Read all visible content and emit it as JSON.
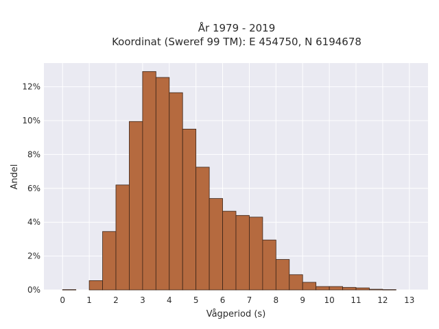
{
  "chart_data": {
    "type": "bar",
    "title": "År 1979 - 2019",
    "subtitle": "Koordinat (Sweref 99 TM): E 454750, N 6194678",
    "xlabel": "Vågperiod (s)",
    "ylabel": "Andel",
    "bin_width": 0.5,
    "bin_starts": [
      0.0,
      1.0,
      1.5,
      2.0,
      2.5,
      3.0,
      3.5,
      4.0,
      4.5,
      5.0,
      5.5,
      6.0,
      6.5,
      7.0,
      7.5,
      8.0,
      8.5,
      9.0,
      9.5,
      10.0,
      10.5,
      11.0,
      11.5,
      12.0
    ],
    "values": [
      0.02,
      0.55,
      3.45,
      6.2,
      9.95,
      12.9,
      12.55,
      11.65,
      9.5,
      7.25,
      5.4,
      4.65,
      4.4,
      4.3,
      2.95,
      1.8,
      0.9,
      0.45,
      0.2,
      0.2,
      0.15,
      0.12,
      0.04,
      0.02
    ],
    "xlim": [
      -0.7,
      13.7
    ],
    "ylim": [
      0,
      13.4
    ],
    "x_ticks": [
      "0",
      "1",
      "2",
      "3",
      "4",
      "5",
      "6",
      "7",
      "8",
      "9",
      "10",
      "11",
      "12",
      "13"
    ],
    "y_ticks": [
      "0%",
      "2%",
      "4%",
      "6%",
      "8%",
      "10%",
      "12%"
    ],
    "grid": true,
    "colors": {
      "bar_fill": "#b56a3f",
      "bar_stroke": "#3a2418",
      "plot_background": "#eaeaf2",
      "grid": "#ffffff"
    }
  }
}
